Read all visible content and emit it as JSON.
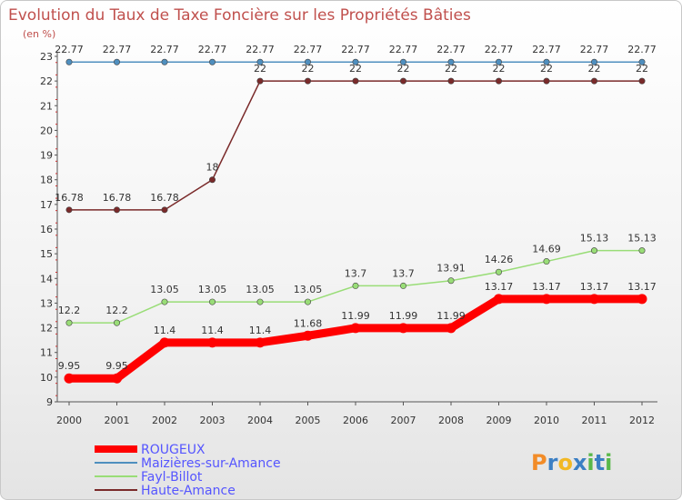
{
  "chart_data": {
    "type": "line",
    "title": "Evolution du Taux de Taxe Foncière sur les Propriétés Bâties",
    "ylabel": "(en %)",
    "xlabel": "",
    "categories": [
      "2000",
      "2001",
      "2002",
      "2003",
      "2004",
      "2005",
      "2006",
      "2007",
      "2008",
      "2009",
      "2010",
      "2011",
      "2012"
    ],
    "ylim": [
      9,
      23
    ],
    "yticks": [
      "9",
      "10",
      "11",
      "12",
      "13",
      "14",
      "15",
      "16",
      "17",
      "18",
      "19",
      "20",
      "21",
      "22",
      "23"
    ],
    "grid": false,
    "legend_position": "bottom-left",
    "series": [
      {
        "name": "ROUGEUX",
        "color": "#ff0000",
        "values": [
          9.95,
          9.95,
          11.4,
          11.4,
          11.4,
          11.68,
          11.99,
          11.99,
          11.99,
          13.17,
          13.17,
          13.17,
          13.17
        ],
        "labels": [
          "9.95",
          "9.95",
          "11.4",
          "11.4",
          "11.4",
          "11.68",
          "11.99",
          "11.99",
          "11.99",
          "13.17",
          "13.17",
          "13.17",
          "13.17"
        ]
      },
      {
        "name": "Maizières-sur-Amance",
        "color": "#4f8fbf",
        "values": [
          22.77,
          22.77,
          22.77,
          22.77,
          22.77,
          22.77,
          22.77,
          22.77,
          22.77,
          22.77,
          22.77,
          22.77,
          22.77
        ],
        "labels": [
          "22.77",
          "22.77",
          "22.77",
          "22.77",
          "22.77",
          "22.77",
          "22.77",
          "22.77",
          "22.77",
          "22.77",
          "22.77",
          "22.77",
          "22.77"
        ]
      },
      {
        "name": "Fayl-Billot",
        "color": "#99dd77",
        "values": [
          12.2,
          12.2,
          13.05,
          13.05,
          13.05,
          13.05,
          13.7,
          13.7,
          13.91,
          14.26,
          14.69,
          15.13,
          15.13
        ],
        "labels": [
          "12.2",
          "12.2",
          "13.05",
          "13.05",
          "13.05",
          "13.05",
          "13.7",
          "13.7",
          "13.91",
          "14.26",
          "14.69",
          "15.13",
          "15.13"
        ]
      },
      {
        "name": "Haute-Amance",
        "color": "#7a2a2a",
        "values": [
          16.78,
          16.78,
          16.78,
          18,
          22,
          22,
          22,
          22,
          22,
          22,
          22,
          22,
          22
        ],
        "labels": [
          "16.78",
          "16.78",
          "16.78",
          "18",
          "22",
          "22",
          "22",
          "22",
          "22",
          "22",
          "22",
          "22",
          "22"
        ]
      }
    ]
  },
  "logo": {
    "letters": [
      "P",
      "r",
      "o",
      "x",
      "i",
      "t",
      "i"
    ],
    "colors": [
      "#f28c28",
      "#3b7fc4",
      "#f2b824",
      "#3b7fc4",
      "#59b84a",
      "#3b7fc4",
      "#59b84a"
    ]
  }
}
